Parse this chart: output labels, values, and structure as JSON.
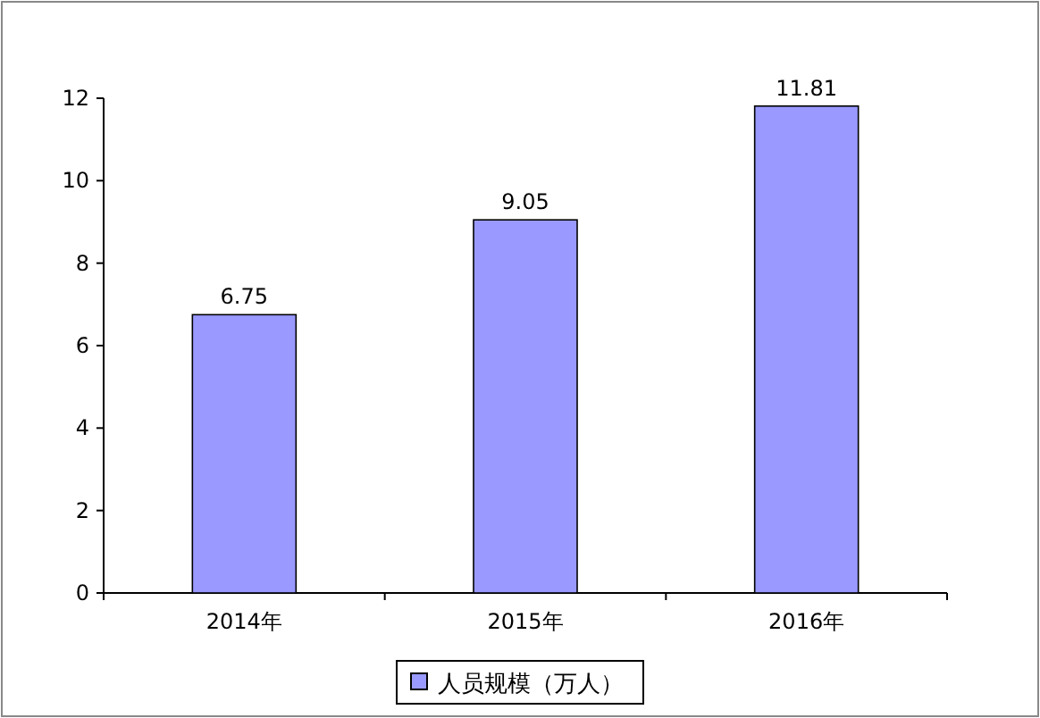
{
  "chart_data": {
    "type": "bar",
    "categories": [
      "2014年",
      "2015年",
      "2016年"
    ],
    "series": [
      {
        "name": "人员规模（万人）",
        "color": "#9999ff",
        "values": [
          6.75,
          9.05,
          11.81
        ]
      }
    ],
    "ylim": [
      0,
      12
    ],
    "yticks": [
      0,
      2,
      4,
      6,
      8,
      10,
      12
    ],
    "data_labels": true,
    "legend": "bottom"
  }
}
